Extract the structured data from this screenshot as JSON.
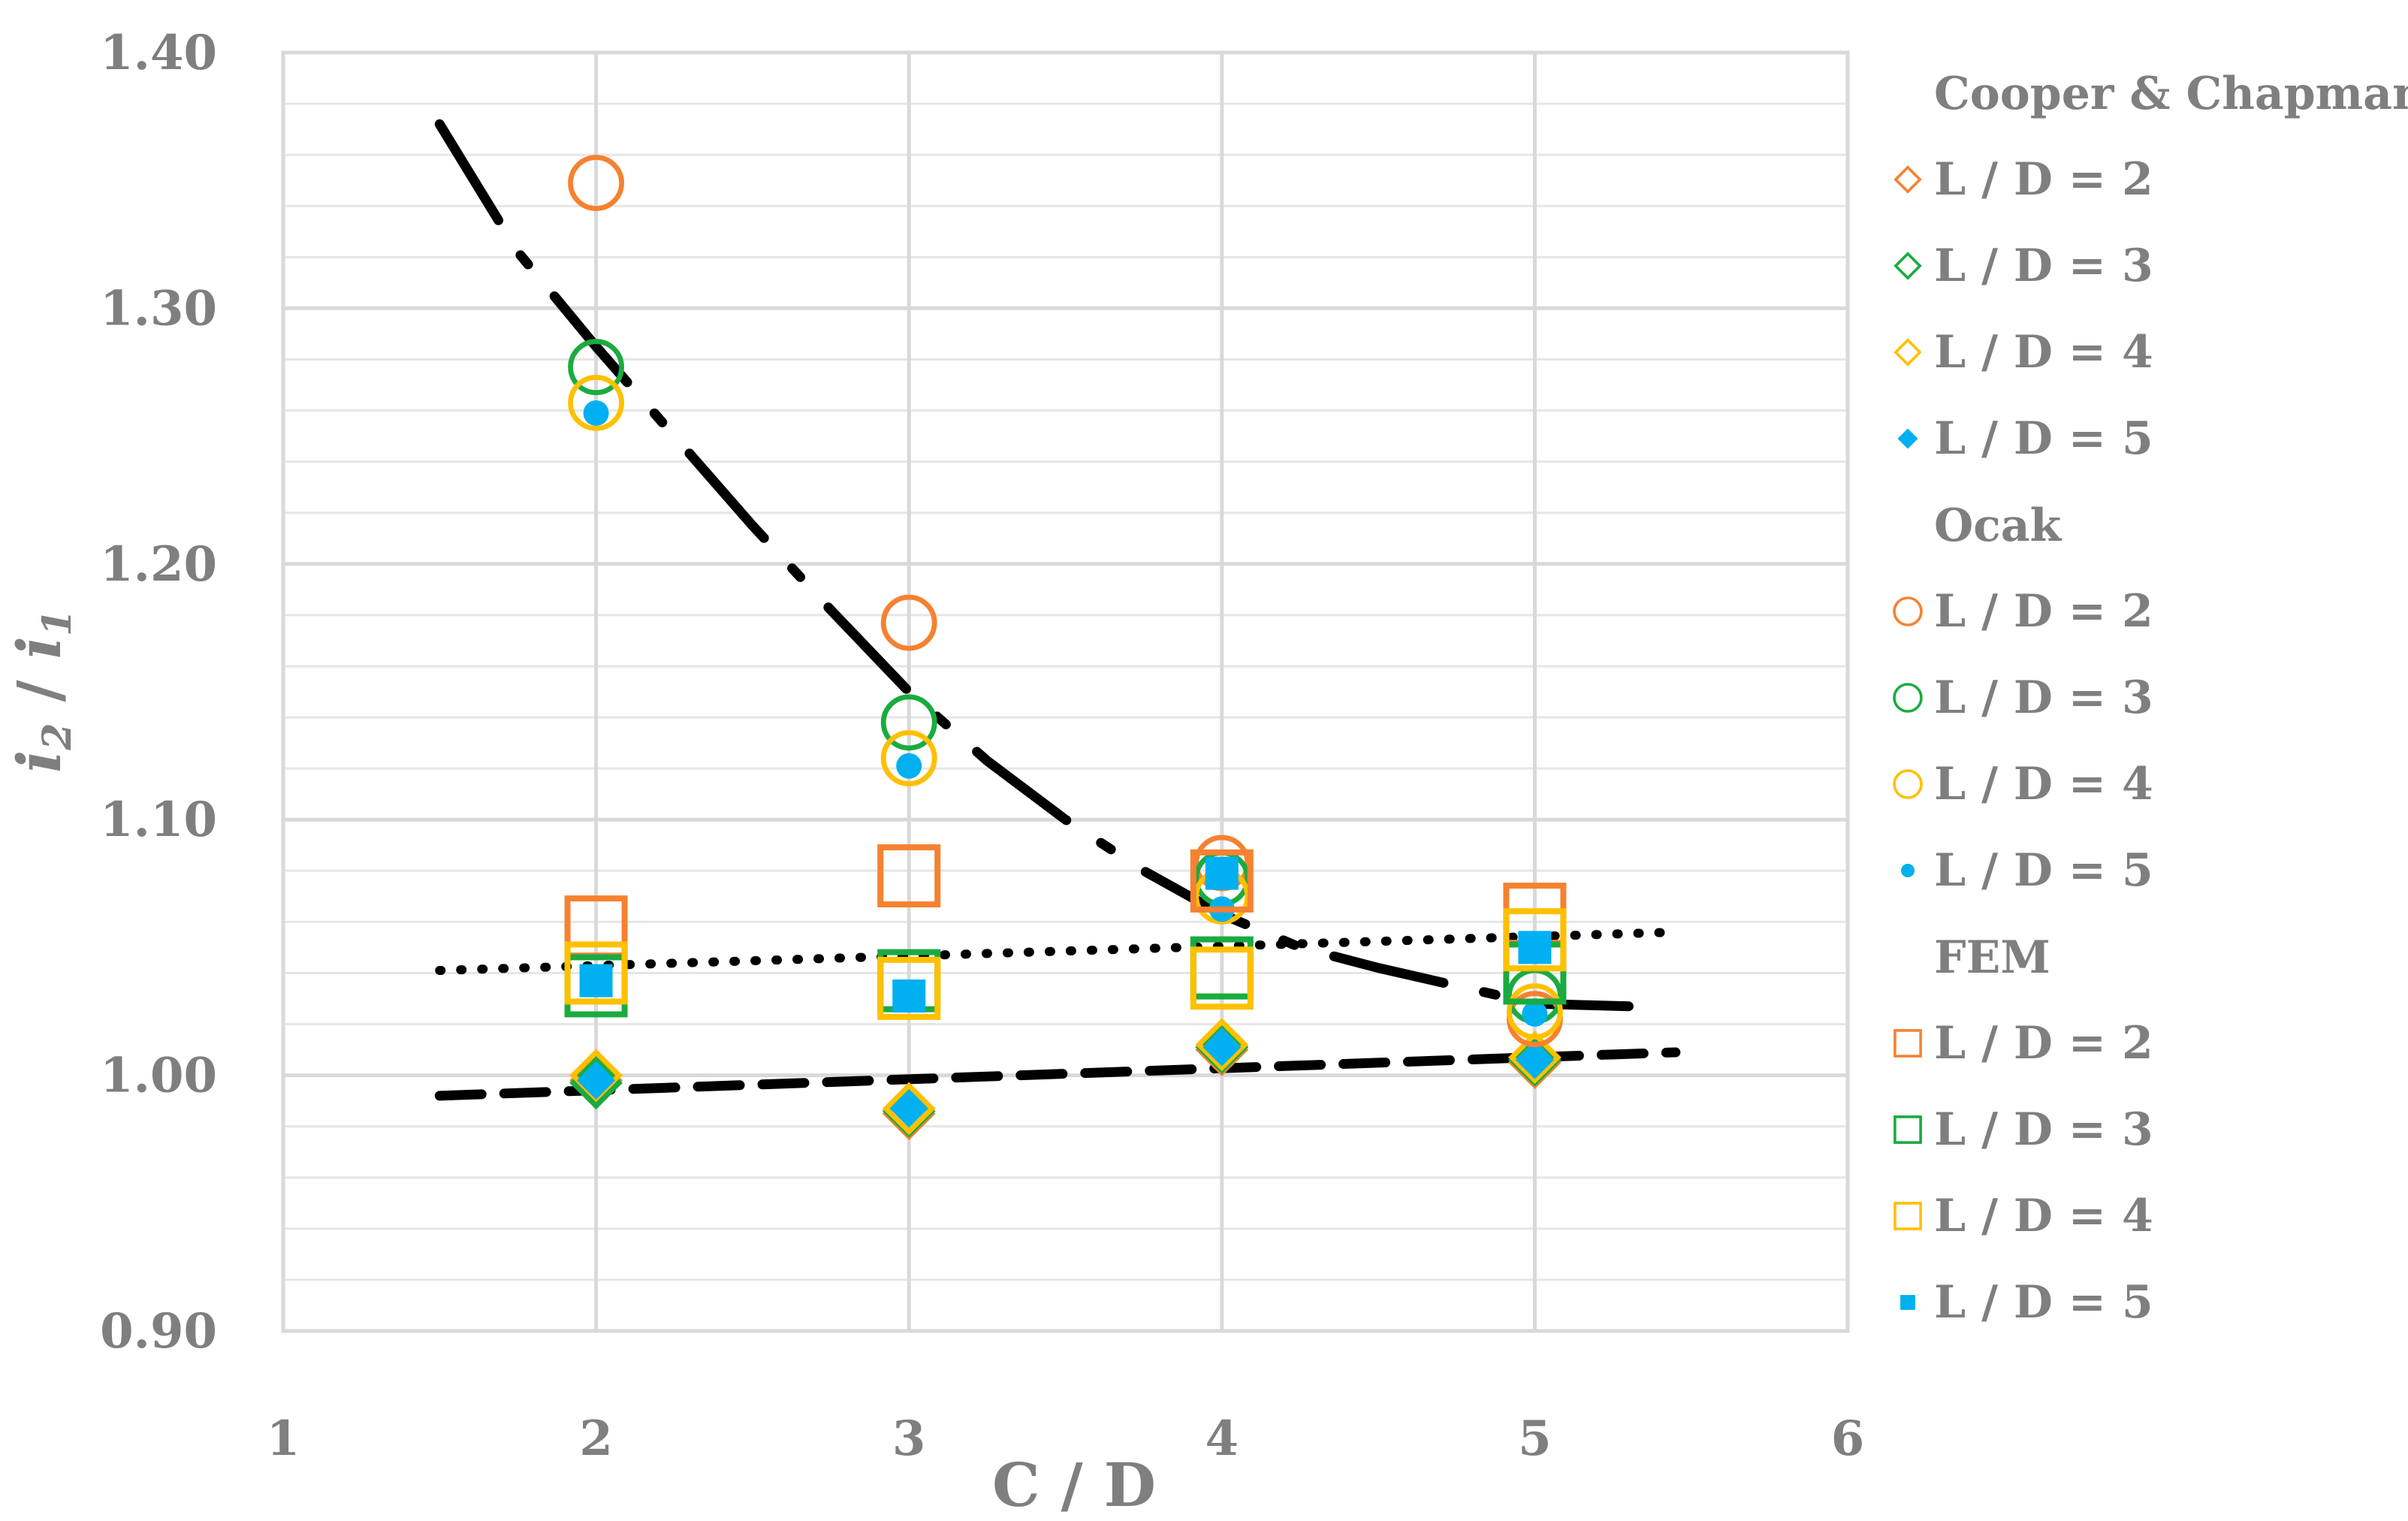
{
  "chart_data": {
    "type": "scatter",
    "xlabel": "C / D",
    "ylabel_main": "i",
    "ylabel_sub2": "2",
    "ylabel_sep": " / ",
    "ylabel_sub1": "1",
    "xlim": [
      1,
      6
    ],
    "ylim": [
      0.9,
      1.4
    ],
    "x_ticks": [
      "1",
      "2",
      "3",
      "4",
      "5",
      "6"
    ],
    "y_ticks": [
      "0.90",
      "1.00",
      "1.10",
      "1.20",
      "1.30",
      "1.40"
    ],
    "grid": true,
    "legend_position": "right",
    "colors": {
      "orange": "#f58231",
      "green": "#1aab40",
      "yellow": "#ffc000",
      "blue": "#00b0f0",
      "trend": "#000000",
      "grid": "#d9d9d9",
      "text": "#7f7f7f"
    },
    "groups": [
      {
        "name": "Cooper & Chapman",
        "marker": "diamond",
        "series": [
          {
            "name": "L / D = 2",
            "color": "orange",
            "filled": false,
            "x": [
              2,
              3,
              4,
              5
            ],
            "y": [
              0.998,
              0.985,
              1.01,
              1.005
            ]
          },
          {
            "name": "L / D = 3",
            "color": "green",
            "filled": false,
            "x": [
              2,
              3,
              4,
              5
            ],
            "y": [
              0.997,
              0.986,
              1.011,
              1.006
            ]
          },
          {
            "name": "L / D = 4",
            "color": "yellow",
            "filled": false,
            "x": [
              2,
              3,
              4,
              5
            ],
            "y": [
              1.0,
              0.987,
              1.012,
              1.007
            ]
          },
          {
            "name": "L / D = 5",
            "color": "blue",
            "filled": true,
            "x": [
              2,
              3,
              4,
              5
            ],
            "y": [
              0.998,
              0.987,
              1.011,
              1.006
            ]
          }
        ]
      },
      {
        "name": "Ocak",
        "marker": "circle",
        "series": [
          {
            "name": "L / D = 2",
            "color": "orange",
            "filled": false,
            "x": [
              2,
              3,
              4,
              5
            ],
            "y": [
              1.349,
              1.177,
              1.083,
              1.022
            ]
          },
          {
            "name": "L / D = 3",
            "color": "green",
            "filled": false,
            "x": [
              2,
              3,
              4,
              5
            ],
            "y": [
              1.277,
              1.138,
              1.077,
              1.031
            ]
          },
          {
            "name": "L / D = 4",
            "color": "yellow",
            "filled": false,
            "x": [
              2,
              3,
              4,
              5
            ],
            "y": [
              1.263,
              1.124,
              1.07,
              1.025
            ]
          },
          {
            "name": "L / D = 5",
            "color": "blue",
            "filled": true,
            "x": [
              2,
              3,
              4,
              5
            ],
            "y": [
              1.259,
              1.121,
              1.065,
              1.024
            ]
          }
        ]
      },
      {
        "name": "FEM",
        "marker": "square",
        "series": [
          {
            "name": "L / D = 2",
            "color": "orange",
            "filled": false,
            "x": [
              2,
              3,
              4,
              5
            ],
            "y": [
              1.058,
              1.078,
              1.076,
              1.063
            ]
          },
          {
            "name": "L / D = 3",
            "color": "green",
            "filled": false,
            "x": [
              2,
              3,
              4,
              5
            ],
            "y": [
              1.035,
              1.037,
              1.042,
              1.04
            ]
          },
          {
            "name": "L / D = 4",
            "color": "yellow",
            "filled": false,
            "x": [
              2,
              3,
              4,
              5
            ],
            "y": [
              1.04,
              1.034,
              1.038,
              1.053
            ]
          },
          {
            "name": "L / D = 5",
            "color": "blue",
            "filled": true,
            "x": [
              2,
              3,
              4,
              5
            ],
            "y": [
              1.037,
              1.031,
              1.079,
              1.05
            ]
          }
        ]
      }
    ],
    "trendlines": [
      {
        "name": "ocak-trend",
        "style": "dash-dot",
        "x": [
          1.5,
          1.75,
          2.0,
          2.25,
          2.5,
          2.75,
          3.0,
          3.25,
          3.5,
          3.75,
          4.0,
          4.25,
          4.5,
          4.75,
          5.0,
          5.3
        ],
        "y": [
          1.372,
          1.322,
          1.285,
          1.25,
          1.215,
          1.182,
          1.15,
          1.123,
          1.1,
          1.08,
          1.063,
          1.05,
          1.042,
          1.035,
          1.028,
          1.027
        ]
      },
      {
        "name": "fem-trend",
        "style": "dotted",
        "x": [
          1.5,
          5.45
        ],
        "y": [
          1.041,
          1.056
        ]
      },
      {
        "name": "cooper-trend",
        "style": "dashed",
        "x": [
          1.5,
          5.45
        ],
        "y": [
          0.992,
          1.009
        ]
      }
    ]
  }
}
